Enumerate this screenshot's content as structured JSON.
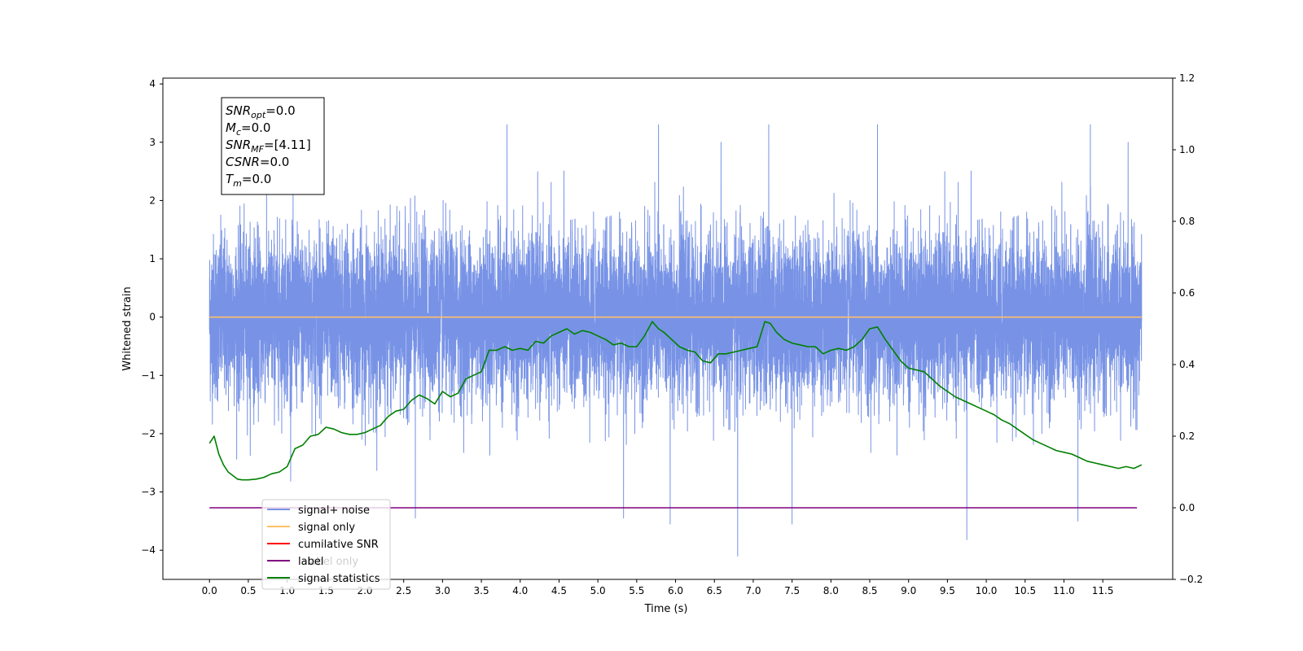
{
  "chart_data": {
    "type": "line",
    "xlabel": "Time (s)",
    "ylabel": "Whitened strain",
    "xlim": [
      -0.6,
      12.4
    ],
    "ylim": [
      -4.5,
      4.1
    ],
    "y2lim": [
      -0.2,
      1.2
    ],
    "x_ticks": [
      "0.0",
      "0.5",
      "1.0",
      "1.5",
      "2.0",
      "2.5",
      "3.0",
      "3.5",
      "4.0",
      "4.5",
      "5.0",
      "5.5",
      "6.0",
      "6.5",
      "7.0",
      "7.5",
      "8.0",
      "8.5",
      "9.0",
      "9.5",
      "10.0",
      "10.5",
      "11.0",
      "11.5"
    ],
    "y_ticks": [
      "−4",
      "−3",
      "−2",
      "−1",
      "0",
      "1",
      "2",
      "3",
      "4"
    ],
    "y2_ticks": [
      "−0.2",
      "0.0",
      "0.2",
      "0.4",
      "0.6",
      "0.8",
      "1.0",
      "1.2"
    ],
    "grid": false,
    "legend_position": "lower-left",
    "textbox": {
      "lines": [
        {
          "sym": "SNR",
          "sub": "opt",
          "value": "=0.0"
        },
        {
          "sym": "M",
          "sub": "c",
          "value": "=0.0"
        },
        {
          "sym": "SNR",
          "sub": "MF",
          "value": "=[4.11]"
        },
        {
          "sym": "CSNR",
          "sub": "",
          "value": "=0.0"
        },
        {
          "sym": "T",
          "sub": "m",
          "value": "=0.0"
        }
      ]
    },
    "legend": [
      {
        "label": "signal+ noise",
        "color": "#7893e6"
      },
      {
        "label": "signal only",
        "color": "#ffbf66"
      },
      {
        "label": "cumilative SNR",
        "color": "#ff0000"
      },
      {
        "label": "label",
        "color": "#800080"
      },
      {
        "label": "signal statistics",
        "color": "#008000"
      }
    ],
    "hidden_legend_text": "label only",
    "series": [
      {
        "name": "signal+ noise",
        "axis": "left",
        "color": "#7893e6",
        "x_range": [
          0.0,
          12.0
        ],
        "samples": 12000,
        "noise_std": 0.7,
        "notable_peaks": [
          {
            "x": 5.78,
            "y": 3.7
          },
          {
            "x": 11.34,
            "y": 3.65
          },
          {
            "x": 7.2,
            "y": 3.45
          },
          {
            "x": 3.83,
            "y": 3.35
          },
          {
            "x": 8.6,
            "y": 3.35
          },
          {
            "x": 6.8,
            "y": -4.1
          },
          {
            "x": 9.75,
            "y": -3.82
          },
          {
            "x": 5.93,
            "y": -3.55
          },
          {
            "x": 7.5,
            "y": -3.55
          },
          {
            "x": 11.18,
            "y": -3.5
          },
          {
            "x": 5.33,
            "y": -3.45
          },
          {
            "x": 2.65,
            "y": -3.45
          }
        ]
      },
      {
        "name": "signal only",
        "axis": "left",
        "color": "#ffbf66",
        "x": [
          0.0,
          12.0
        ],
        "y": [
          0.0,
          0.0
        ]
      },
      {
        "name": "label",
        "axis": "right",
        "color": "#800080",
        "x": [
          0.0,
          11.94
        ],
        "y": [
          0.0,
          0.0
        ]
      },
      {
        "name": "signal statistics",
        "axis": "right",
        "color": "#008000",
        "x": [
          0.0,
          0.06,
          0.12,
          0.18,
          0.24,
          0.3,
          0.36,
          0.42,
          0.5,
          0.6,
          0.7,
          0.8,
          0.9,
          1.0,
          1.1,
          1.2,
          1.3,
          1.4,
          1.5,
          1.6,
          1.7,
          1.8,
          1.9,
          2.0,
          2.1,
          2.2,
          2.3,
          2.4,
          2.5,
          2.6,
          2.7,
          2.8,
          2.9,
          3.0,
          3.1,
          3.2,
          3.3,
          3.4,
          3.5,
          3.6,
          3.7,
          3.8,
          3.9,
          4.0,
          4.1,
          4.2,
          4.3,
          4.4,
          4.5,
          4.6,
          4.7,
          4.8,
          4.9,
          5.0,
          5.1,
          5.2,
          5.3,
          5.4,
          5.5,
          5.6,
          5.7,
          5.78,
          5.85,
          5.95,
          6.05,
          6.15,
          6.25,
          6.35,
          6.45,
          6.55,
          6.65,
          6.75,
          6.85,
          6.95,
          7.05,
          7.15,
          7.22,
          7.3,
          7.4,
          7.5,
          7.6,
          7.7,
          7.8,
          7.9,
          8.0,
          8.1,
          8.2,
          8.3,
          8.4,
          8.5,
          8.6,
          8.7,
          8.8,
          8.9,
          9.0,
          9.1,
          9.2,
          9.3,
          9.4,
          9.5,
          9.6,
          9.7,
          9.8,
          9.9,
          10.0,
          10.1,
          10.2,
          10.3,
          10.4,
          10.5,
          10.6,
          10.7,
          10.8,
          10.9,
          11.0,
          11.1,
          11.2,
          11.3,
          11.4,
          11.5,
          11.6,
          11.7,
          11.8,
          11.9,
          12.0
        ],
        "y": [
          0.18,
          0.2,
          0.15,
          0.12,
          0.1,
          0.09,
          0.08,
          0.078,
          0.078,
          0.08,
          0.085,
          0.095,
          0.1,
          0.115,
          0.165,
          0.175,
          0.2,
          0.205,
          0.225,
          0.22,
          0.21,
          0.205,
          0.205,
          0.21,
          0.22,
          0.23,
          0.255,
          0.27,
          0.275,
          0.3,
          0.315,
          0.305,
          0.29,
          0.325,
          0.31,
          0.32,
          0.36,
          0.37,
          0.38,
          0.44,
          0.44,
          0.45,
          0.44,
          0.445,
          0.44,
          0.465,
          0.46,
          0.48,
          0.49,
          0.5,
          0.485,
          0.495,
          0.49,
          0.48,
          0.47,
          0.455,
          0.46,
          0.45,
          0.45,
          0.48,
          0.52,
          0.5,
          0.49,
          0.47,
          0.45,
          0.44,
          0.435,
          0.41,
          0.405,
          0.43,
          0.43,
          0.435,
          0.44,
          0.445,
          0.45,
          0.52,
          0.515,
          0.49,
          0.47,
          0.46,
          0.455,
          0.45,
          0.45,
          0.43,
          0.44,
          0.445,
          0.44,
          0.45,
          0.47,
          0.5,
          0.505,
          0.47,
          0.44,
          0.41,
          0.39,
          0.385,
          0.38,
          0.36,
          0.34,
          0.325,
          0.31,
          0.3,
          0.29,
          0.28,
          0.27,
          0.26,
          0.245,
          0.235,
          0.22,
          0.205,
          0.19,
          0.18,
          0.17,
          0.16,
          0.155,
          0.15,
          0.14,
          0.13,
          0.125,
          0.12,
          0.115,
          0.11,
          0.115,
          0.11,
          0.12
        ]
      }
    ]
  }
}
